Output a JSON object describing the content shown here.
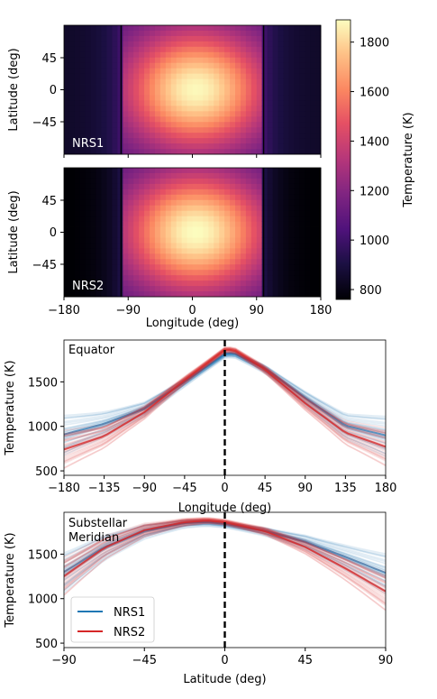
{
  "chart_data": [
    {
      "type": "heatmap",
      "panel_label": "NRS1",
      "ylabel": "Latitude (deg)",
      "yticks": [
        "45",
        "0",
        "−45"
      ],
      "x_range": [
        -180,
        180
      ],
      "y_range": [
        -90,
        90
      ],
      "hot_spot": {
        "longitude": 5,
        "latitude": 0,
        "peak_temperature": 1880
      },
      "nightside_temperature": 840,
      "bright_band": [
        -100,
        100
      ]
    },
    {
      "type": "heatmap",
      "panel_label": "NRS2",
      "ylabel": "Latitude (deg)",
      "xlabel": "Longitude (deg)",
      "yticks": [
        "45",
        "0",
        "−45"
      ],
      "xticks": [
        "−180",
        "−90",
        "0",
        "90",
        "180"
      ],
      "x_range": [
        -180,
        180
      ],
      "y_range": [
        -90,
        90
      ],
      "hot_spot": {
        "longitude": 5,
        "latitude": 0,
        "peak_temperature": 1890
      },
      "nightside_temperature": 750,
      "bright_band": [
        -100,
        100
      ]
    },
    {
      "type": "colorbar",
      "label": "Temperature (K)",
      "range": [
        760,
        1890
      ],
      "ticks": [
        "800",
        "1000",
        "1200",
        "1400",
        "1600",
        "1800"
      ],
      "tick_values": [
        800,
        1000,
        1200,
        1400,
        1600,
        1800
      ]
    },
    {
      "type": "line",
      "annotation": "Equator",
      "xlabel": "Longitude (deg)",
      "ylabel": "Temperature (K)",
      "xlim": [
        -180,
        180
      ],
      "ylim": [
        450,
        1970
      ],
      "xticks": [
        "−180",
        "−135",
        "−90",
        "−45",
        "0",
        "45",
        "90",
        "135",
        "180"
      ],
      "xtick_values": [
        -180,
        -135,
        -90,
        -45,
        0,
        45,
        90,
        135,
        180
      ],
      "yticks": [
        "500",
        "1000",
        "1500"
      ],
      "ytick_values": [
        500,
        1000,
        1500
      ],
      "vline": 0,
      "series": [
        {
          "name": "NRS1",
          "color": "#1f77b4",
          "x": [
            -180,
            -135,
            -90,
            -45,
            0,
            10,
            45,
            90,
            135,
            180
          ],
          "y": [
            910,
            1030,
            1200,
            1500,
            1810,
            1820,
            1650,
            1320,
            1010,
            900
          ]
        },
        {
          "name": "NRS2",
          "color": "#d62728",
          "x": [
            -180,
            -135,
            -90,
            -45,
            0,
            10,
            45,
            90,
            135,
            180
          ],
          "y": [
            740,
            890,
            1160,
            1520,
            1860,
            1860,
            1640,
            1260,
            930,
            770
          ]
        }
      ]
    },
    {
      "type": "line",
      "annotation": "Substellar\nMeridian",
      "xlabel": "Latitude (deg)",
      "ylabel": "Temperature (K)",
      "xlim": [
        -90,
        90
      ],
      "ylim": [
        450,
        1970
      ],
      "xticks": [
        "−90",
        "−45",
        "0",
        "45",
        "90"
      ],
      "xtick_values": [
        -90,
        -45,
        0,
        45,
        90
      ],
      "yticks": [
        "500",
        "1000",
        "1500"
      ],
      "ytick_values": [
        500,
        1000,
        1500
      ],
      "vline": 0,
      "legend": {
        "placement": "lower-left",
        "entries": [
          "NRS1",
          "NRS2"
        ]
      },
      "series": [
        {
          "name": "NRS1",
          "color": "#1f77b4",
          "x": [
            -90,
            -67.5,
            -45,
            -22.5,
            -10,
            0,
            22.5,
            45,
            67.5,
            90
          ],
          "y": [
            1300,
            1580,
            1760,
            1850,
            1860,
            1840,
            1760,
            1640,
            1470,
            1290
          ]
        },
        {
          "name": "NRS2",
          "color": "#d62728",
          "x": [
            -90,
            -67.5,
            -45,
            -22.5,
            -10,
            0,
            22.5,
            45,
            67.5,
            90
          ],
          "y": [
            1250,
            1570,
            1770,
            1860,
            1880,
            1860,
            1760,
            1580,
            1340,
            1080
          ]
        }
      ]
    }
  ]
}
